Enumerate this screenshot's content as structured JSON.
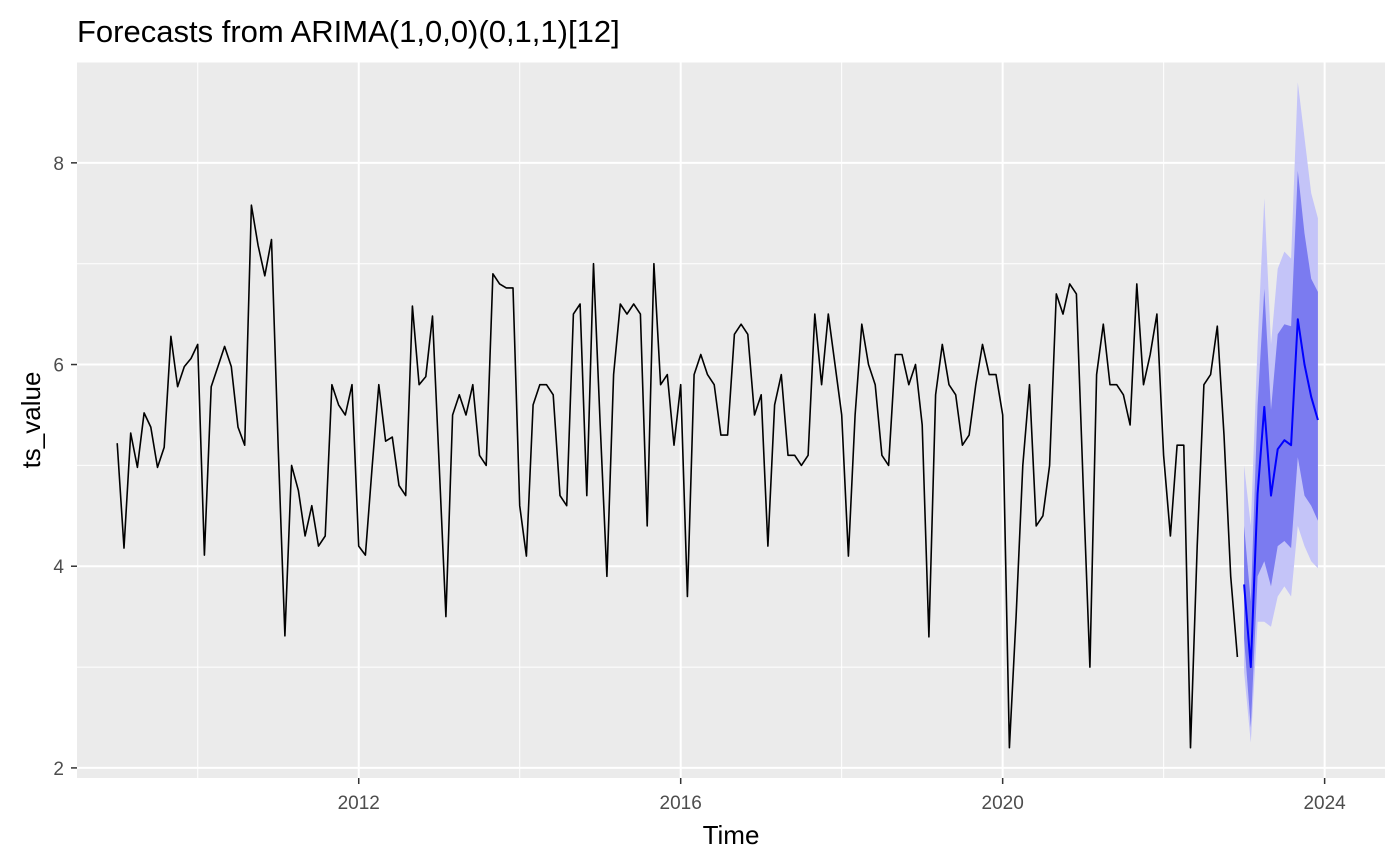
{
  "chart_data": {
    "type": "line",
    "title": "Forecasts from ARIMA(1,0,0)(0,1,1)[12]",
    "xlabel": "Time",
    "ylabel": "ts_value",
    "xlim": [
      2008.5,
      2024.75
    ],
    "ylim": [
      1.9,
      9.0
    ],
    "x_ticks": [
      2012,
      2016,
      2020,
      2024
    ],
    "y_ticks": [
      2,
      4,
      6,
      8
    ],
    "grid": true,
    "legend": "none",
    "colors": {
      "panel": "#ebebeb",
      "grid": "#ffffff",
      "history": "#000000",
      "forecast": "#0000ff",
      "band80": "#7b7bf0",
      "band95": "#c4c4f8"
    },
    "history": {
      "start": 2009.0,
      "frequency": 12,
      "values": [
        5.22,
        4.18,
        5.32,
        4.98,
        5.52,
        5.38,
        4.98,
        5.18,
        6.28,
        5.78,
        5.98,
        6.06,
        6.2,
        4.11,
        5.78,
        5.98,
        6.18,
        5.98,
        5.38,
        5.2,
        7.58,
        7.18,
        6.88,
        7.24,
        5.18,
        3.31,
        5.0,
        4.75,
        4.3,
        4.6,
        4.2,
        4.3,
        5.8,
        5.6,
        5.5,
        5.8,
        4.2,
        4.11,
        4.98,
        5.8,
        5.24,
        5.28,
        4.8,
        4.7,
        6.58,
        5.8,
        5.88,
        6.48,
        5.0,
        3.5,
        5.5,
        5.7,
        5.5,
        5.8,
        5.1,
        5.0,
        6.9,
        6.8,
        6.76,
        6.76,
        4.6,
        4.1,
        5.6,
        5.8,
        5.8,
        5.7,
        4.7,
        4.6,
        6.5,
        6.6,
        4.7,
        7.0,
        5.4,
        3.9,
        5.9,
        6.6,
        6.5,
        6.6,
        6.5,
        4.4,
        7.0,
        5.8,
        5.9,
        5.2,
        5.8,
        3.7,
        5.9,
        6.1,
        5.9,
        5.8,
        5.3,
        5.3,
        6.3,
        6.4,
        6.3,
        5.5,
        5.7,
        4.2,
        5.6,
        5.9,
        5.1,
        5.1,
        5.0,
        5.1,
        6.5,
        5.8,
        6.5,
        6.0,
        5.5,
        4.1,
        5.5,
        6.4,
        6.0,
        5.8,
        5.1,
        5.0,
        6.1,
        6.1,
        5.8,
        6.0,
        5.4,
        3.3,
        5.7,
        6.2,
        5.8,
        5.7,
        5.2,
        5.3,
        5.8,
        6.2,
        5.9,
        5.9,
        5.5,
        2.2,
        3.5,
        5.0,
        5.8,
        4.4,
        4.5,
        5.0,
        6.7,
        6.5,
        6.8,
        6.7,
        4.8,
        3.0,
        5.9,
        6.4,
        5.8,
        5.8,
        5.7,
        5.4,
        6.8,
        5.8,
        6.1,
        6.5,
        5.1,
        4.3,
        5.2,
        5.2,
        2.2,
        4.2,
        5.8,
        5.9,
        6.38,
        5.3,
        3.9,
        3.1
      ]
    },
    "forecast": {
      "start": 2023.0,
      "frequency": 12,
      "mean": [
        3.82,
        3.0,
        4.72,
        5.58,
        4.7,
        5.16,
        5.25,
        5.2,
        6.45,
        6.0,
        5.68,
        5.45
      ],
      "lo80": [
        3.28,
        2.4,
        3.9,
        4.05,
        3.8,
        4.2,
        4.25,
        4.18,
        5.08,
        4.7,
        4.6,
        4.45
      ],
      "hi80": [
        4.4,
        3.65,
        5.6,
        6.75,
        5.55,
        6.3,
        6.4,
        6.38,
        7.92,
        7.3,
        6.85,
        6.72
      ],
      "lo95": [
        2.95,
        2.25,
        3.45,
        3.45,
        3.4,
        3.7,
        3.8,
        3.7,
        4.4,
        4.2,
        4.05,
        3.98
      ],
      "hi95": [
        5.0,
        4.4,
        6.2,
        7.65,
        6.2,
        6.95,
        7.12,
        7.05,
        8.8,
        8.25,
        7.7,
        7.45
      ]
    }
  }
}
